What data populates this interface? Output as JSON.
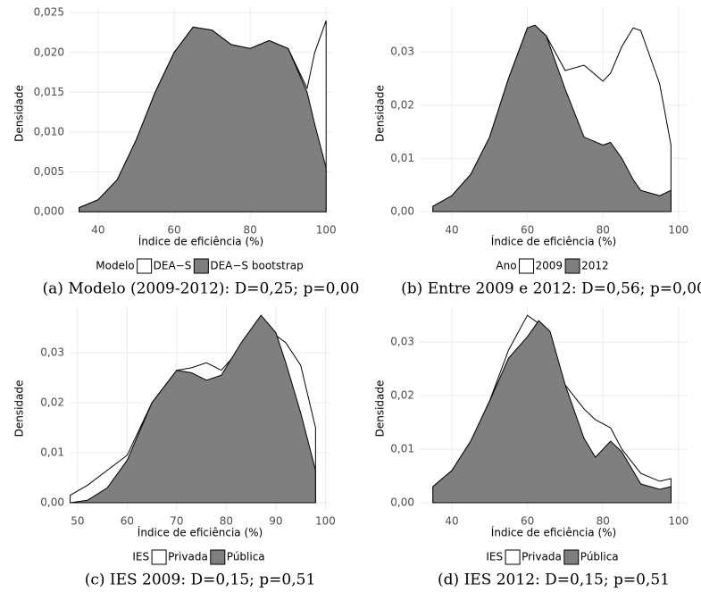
{
  "chart_data": [
    {
      "type": "density",
      "caption": "(a) Modelo (2009-2012): D=0,25; p=0,00",
      "xlabel": "Índice de eficiência (%)",
      "ylabel": "Densidade",
      "legend_title": "Modelo",
      "x": [
        35,
        40,
        45,
        50,
        55,
        60,
        65,
        70,
        75,
        80,
        85,
        90,
        95,
        97,
        100
      ],
      "series": [
        {
          "name": "DEA−S",
          "color": "#ffffff",
          "values": [
            0.0005,
            0.0015,
            0.004,
            0.009,
            0.015,
            0.02,
            0.0232,
            0.0228,
            0.021,
            0.0205,
            0.0215,
            0.0205,
            0.0155,
            0.02,
            0.024
          ]
        },
        {
          "name": "DEA−S bootstrap",
          "color": "#7f7f7f",
          "values": [
            0.0005,
            0.0015,
            0.004,
            0.009,
            0.015,
            0.02,
            0.0232,
            0.0228,
            0.021,
            0.0205,
            0.0215,
            0.0205,
            0.015,
            0.011,
            0.0055
          ]
        }
      ],
      "xlim": [
        32.5,
        101.6
      ],
      "ylim": [
        -0.001,
        0.0257
      ],
      "xticks": [
        40,
        60,
        80,
        100
      ],
      "yticks": [
        {
          "value": 0,
          "label": "0,000"
        },
        {
          "value": 0.005,
          "label": "0,005"
        },
        {
          "value": 0.01,
          "label": "0,010"
        },
        {
          "value": 0.015,
          "label": "0,015"
        },
        {
          "value": 0.02,
          "label": "0,020"
        },
        {
          "value": 0.025,
          "label": "0,025"
        }
      ],
      "grid": true
    },
    {
      "type": "density",
      "caption": "(b) Entre 2009 e 2012: D=0,56; p=0,00",
      "xlabel": "Índice de eficiência (%)",
      "ylabel": "Densidade",
      "legend_title": "Ano",
      "x": [
        35,
        40,
        45,
        50,
        55,
        60,
        62,
        65,
        70,
        75,
        80,
        82,
        85,
        88,
        90,
        95,
        98
      ],
      "series": [
        {
          "name": "2009",
          "color": "#ffffff",
          "values": [
            0.001,
            0.003,
            0.007,
            0.014,
            0.025,
            0.0345,
            0.035,
            0.033,
            0.0265,
            0.0275,
            0.0245,
            0.026,
            0.031,
            0.0345,
            0.034,
            0.024,
            0.0125
          ]
        },
        {
          "name": "2012",
          "color": "#7f7f7f",
          "values": [
            0.001,
            0.003,
            0.007,
            0.014,
            0.025,
            0.0345,
            0.035,
            0.033,
            0.023,
            0.014,
            0.0125,
            0.013,
            0.01,
            0.006,
            0.004,
            0.003,
            0.004
          ]
        }
      ],
      "xlim": [
        31.5,
        102.4
      ],
      "ylim": [
        -0.0015,
        0.0384
      ],
      "xticks": [
        40,
        60,
        80,
        100
      ],
      "yticks": [
        {
          "value": 0,
          "label": "0,00"
        },
        {
          "value": 0.01,
          "label": "0,01"
        },
        {
          "value": 0.02,
          "label": "0,02"
        },
        {
          "value": 0.03,
          "label": "0,03"
        }
      ],
      "grid": true
    },
    {
      "type": "density",
      "caption": "(c) IES 2009: D=0,15; p=0,51",
      "xlabel": "Índice de eficiência (%)",
      "ylabel": "Densidade",
      "legend_title": "IES",
      "x": [
        48.5,
        52,
        56,
        60,
        65,
        70,
        73,
        76,
        79,
        83,
        87,
        90,
        92,
        95,
        98
      ],
      "series": [
        {
          "name": "Privada",
          "color": "#ffffff",
          "values": [
            0.0015,
            0.0035,
            0.0065,
            0.0095,
            0.02,
            0.0265,
            0.027,
            0.028,
            0.0265,
            0.031,
            0.0365,
            0.0335,
            0.032,
            0.0275,
            0.015
          ]
        },
        {
          "name": "Pública",
          "color": "#7f7f7f",
          "values": [
            0,
            0.0005,
            0.003,
            0.0085,
            0.02,
            0.0265,
            0.026,
            0.0245,
            0.0255,
            0.032,
            0.0375,
            0.034,
            0.028,
            0.018,
            0.0065
          ]
        }
      ],
      "xlim": [
        48.4,
        101
      ],
      "ylim": [
        -0.0016,
        0.0393
      ],
      "xticks": [
        50,
        60,
        70,
        80,
        90,
        100
      ],
      "yticks": [
        {
          "value": 0,
          "label": "0,00"
        },
        {
          "value": 0.01,
          "label": "0,01"
        },
        {
          "value": 0.02,
          "label": "0,02"
        },
        {
          "value": 0.03,
          "label": "0,03"
        }
      ],
      "grid": true
    },
    {
      "type": "density",
      "caption": "(d) IES 2012: D=0,15; p=0,51",
      "xlabel": "Índice de eficiência (%)",
      "ylabel": "Densidade",
      "legend_title": "IES",
      "x": [
        35,
        40,
        45,
        50,
        55,
        60,
        63,
        66,
        70,
        75,
        78,
        82,
        85,
        90,
        95,
        98
      ],
      "series": [
        {
          "name": "Privada",
          "color": "#ffffff",
          "values": [
            0.003,
            0.006,
            0.0115,
            0.019,
            0.0285,
            0.035,
            0.0335,
            0.028,
            0.022,
            0.0175,
            0.0155,
            0.014,
            0.01,
            0.0055,
            0.004,
            0.0045
          ]
        },
        {
          "name": "Pública",
          "color": "#7f7f7f",
          "values": [
            0.003,
            0.006,
            0.0115,
            0.019,
            0.027,
            0.031,
            0.034,
            0.032,
            0.022,
            0.012,
            0.0085,
            0.0115,
            0.0095,
            0.0035,
            0.0025,
            0.003
          ]
        }
      ],
      "xlim": [
        31.5,
        102.4
      ],
      "ylim": [
        -0.0015,
        0.0367
      ],
      "xticks": [
        40,
        60,
        80,
        100
      ],
      "yticks": [
        {
          "value": 0,
          "label": "0,00"
        },
        {
          "value": 0.01,
          "label": "0,01"
        },
        {
          "value": 0.02,
          "label": "0,02"
        },
        {
          "value": 0.03,
          "label": "0,03"
        }
      ],
      "grid": true
    }
  ]
}
